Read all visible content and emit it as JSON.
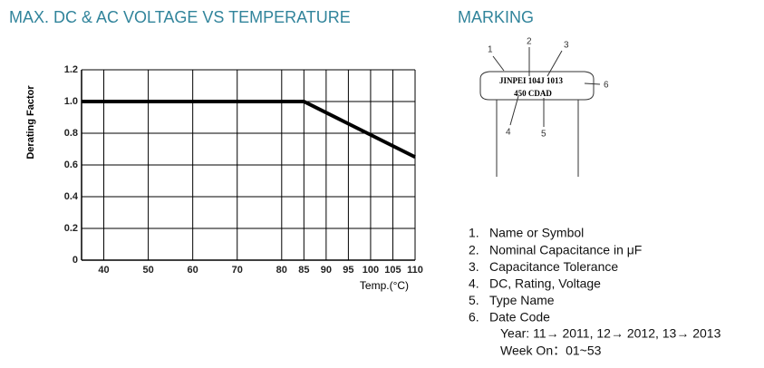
{
  "chart_data": {
    "type": "line",
    "title": "MAX. DC & AC VOLTAGE VS TEMPERATURE",
    "x_label": "Temp.(°C)",
    "y_label": "Derating Factor",
    "series": [
      {
        "name": "Derating",
        "color": "#000000",
        "x": [
          35,
          85,
          110
        ],
        "values": [
          1,
          1,
          0.65
        ]
      }
    ],
    "xlim": [
      35,
      110
    ],
    "xticks": [
      40,
      50,
      60,
      70,
      80,
      85,
      90,
      95,
      100,
      105,
      110
    ],
    "ylim": [
      0,
      1.2
    ],
    "yticks": [
      0,
      0.2,
      0.4,
      0.6,
      0.8,
      {
        "value": 1,
        "label": "1.0"
      },
      1.2
    ],
    "grid": true
  },
  "marking": {
    "title": "MARKING",
    "label_line1": "JINPEI 104J 1013",
    "label_line2": "450 CDAD",
    "callouts": [
      "1",
      "2",
      "3",
      "4",
      "5",
      "6"
    ],
    "items": [
      "Name or Symbol",
      "Nominal Capacitance in μF",
      "Capacitance Tolerance",
      "DC, Rating, Voltage",
      "Type Name",
      "Date Code"
    ],
    "item_numbers": [
      "1.",
      "2.",
      "3.",
      "4.",
      "5.",
      "6."
    ],
    "notes": [
      "Year: 11→ 2011, 12→ 2012, 13→  2013",
      "Week On：01~53"
    ]
  }
}
